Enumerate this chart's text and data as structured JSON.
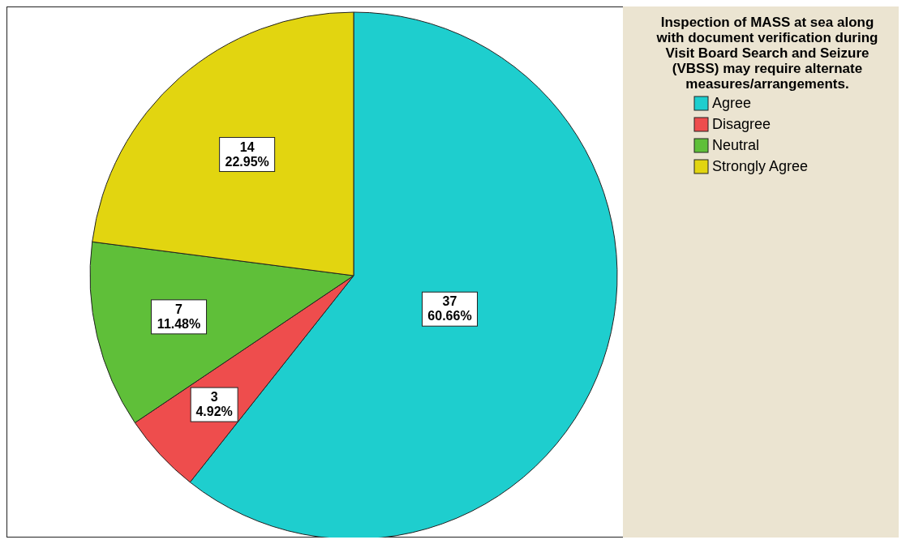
{
  "chart_data": {
    "type": "pie",
    "legend_title": "Inspection of MASS at sea along with document verification during Visit Board Search and Seizure (VBSS) may require alternate measures/arrangements.",
    "categories": [
      "Agree",
      "Disagree",
      "Neutral",
      "Strongly Agree"
    ],
    "values": [
      37,
      3,
      7,
      14
    ],
    "colors": [
      "#1ecece",
      "#ee4d4d",
      "#5fbf39",
      "#e2d510"
    ],
    "value_labels": [
      "37\n60.66%",
      "3\n4.92%",
      "7\n11.48%",
      "14\n22.95%"
    ],
    "legend": "right"
  }
}
